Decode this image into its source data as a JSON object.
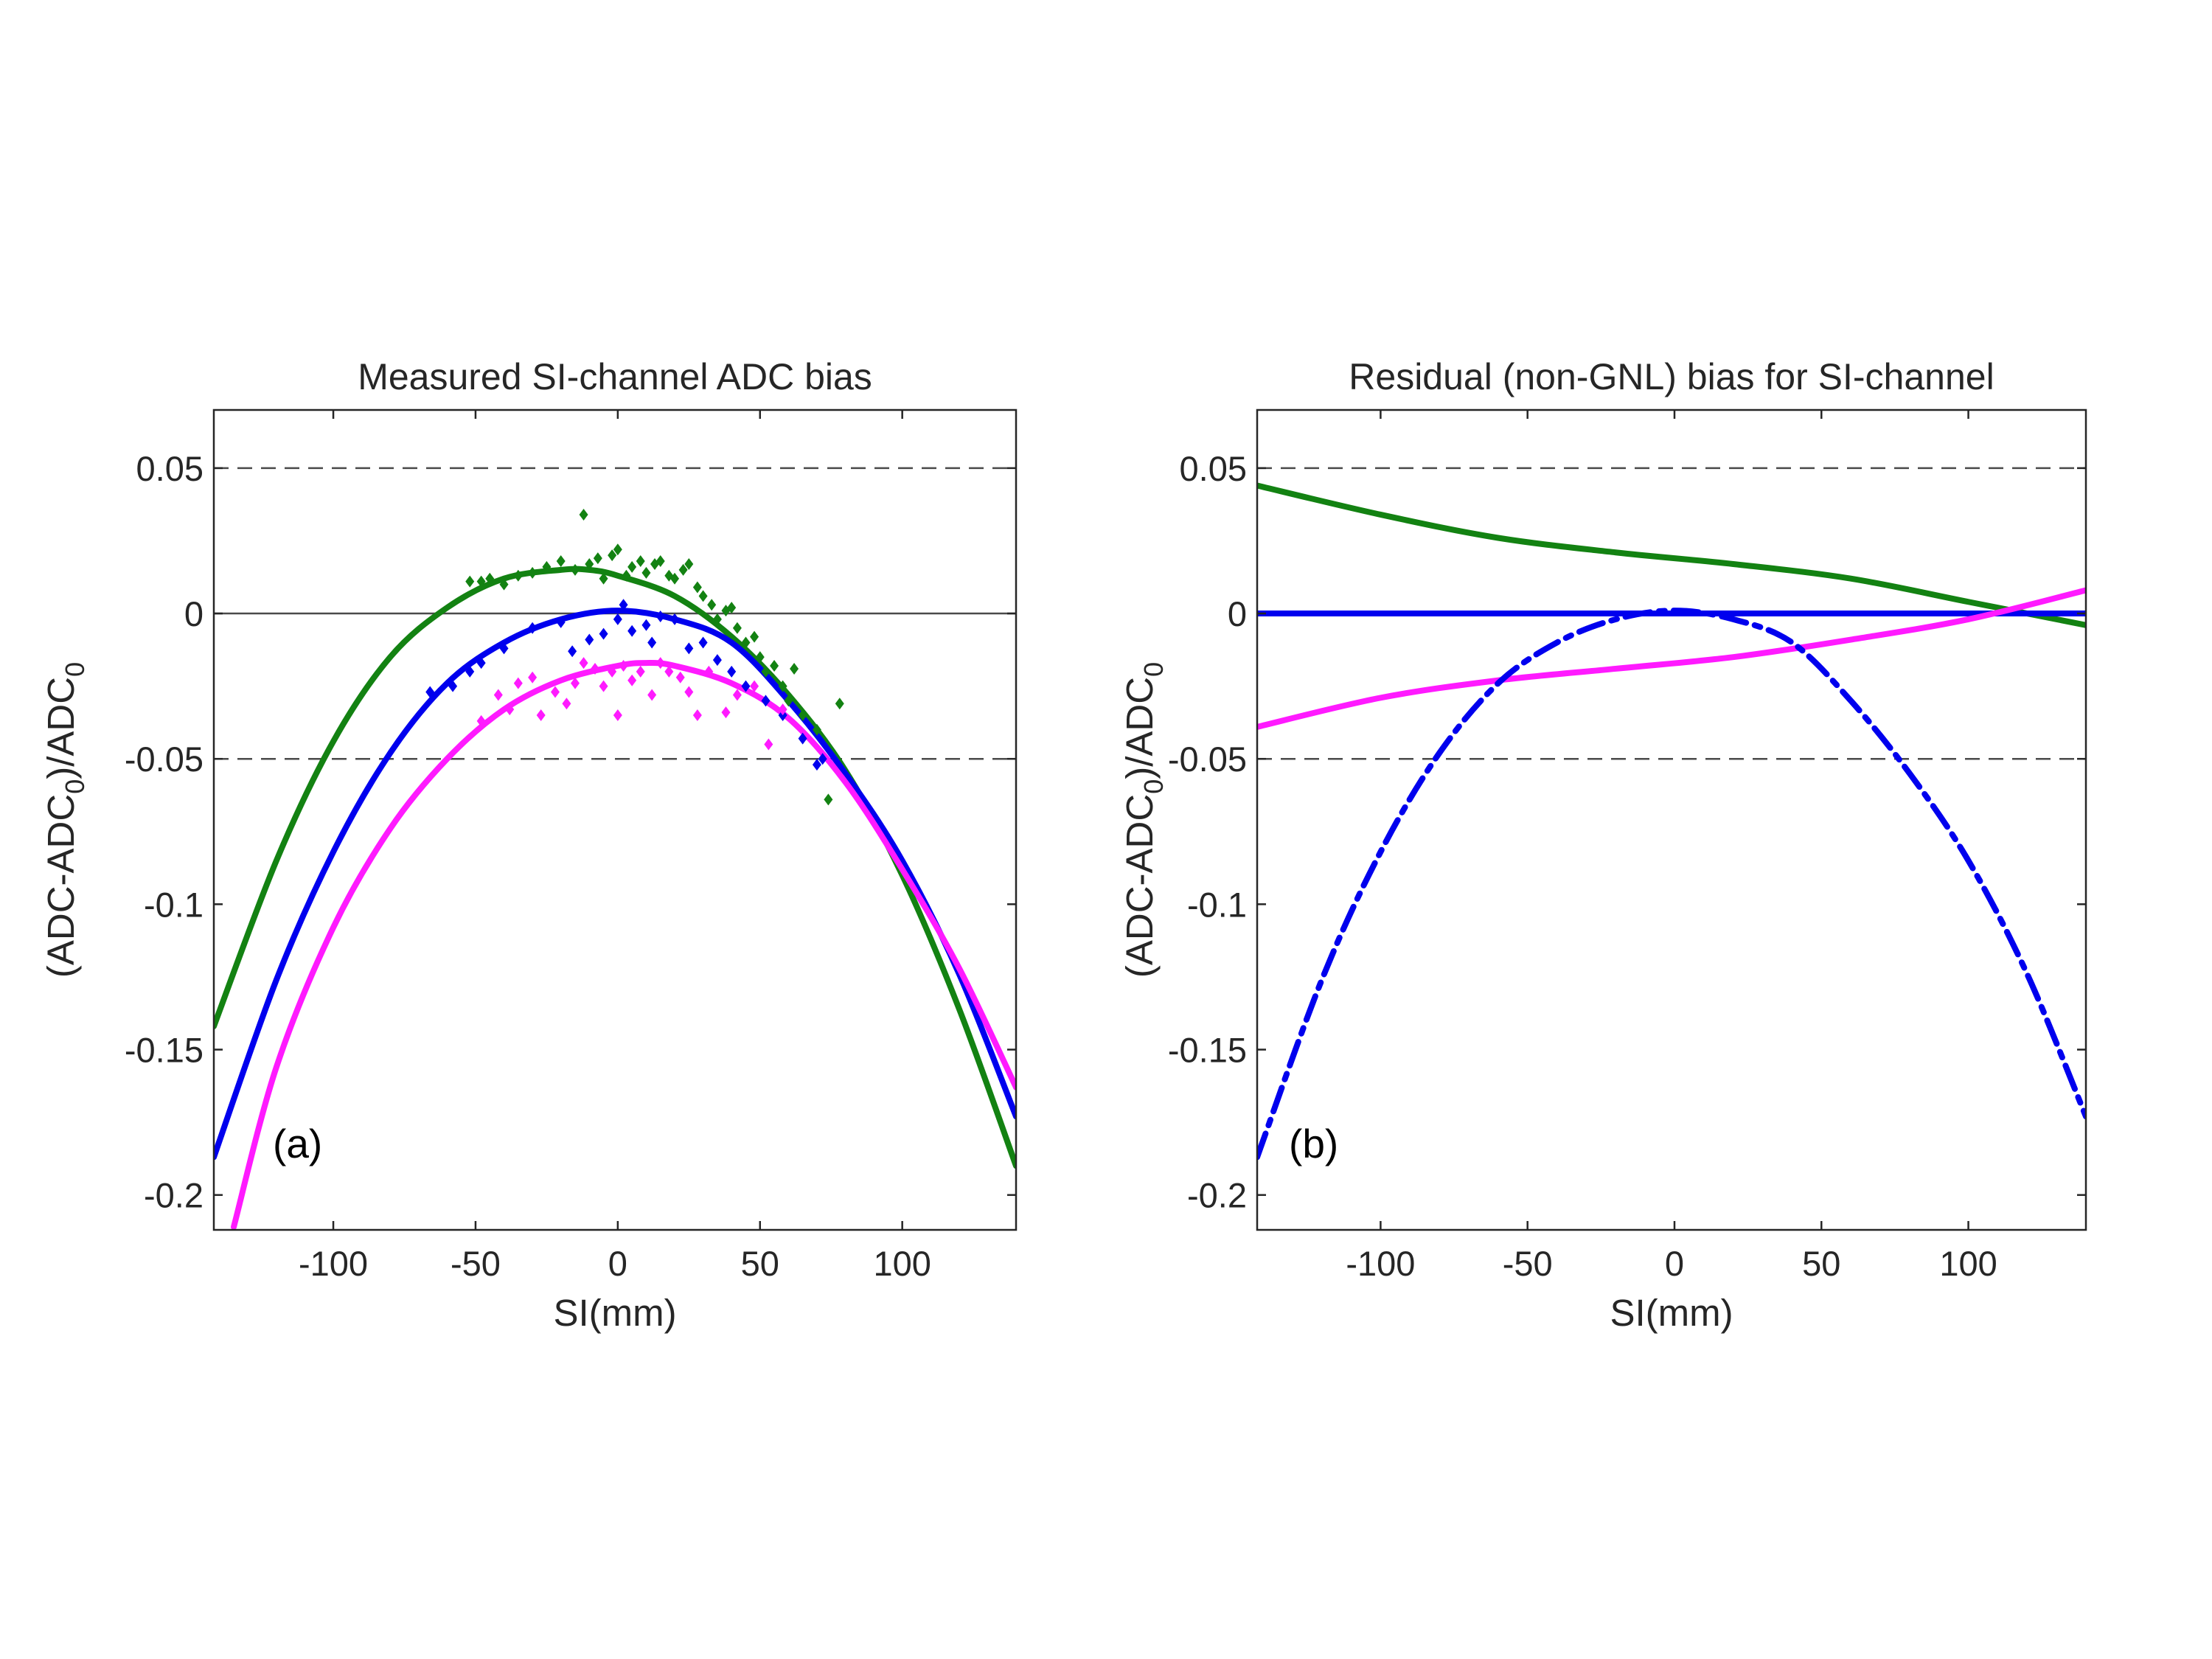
{
  "colors": {
    "green": "#138212",
    "blue": "#0000EE",
    "magenta": "#FF1AFF",
    "axis": "#262626",
    "reference": "#4a4a4a"
  },
  "chart_data": [
    {
      "type": "line",
      "panel_tag": "(a)",
      "title": "Measured SI-channel ADC bias",
      "xlabel": "SI(mm)",
      "ylabel_main": "(ADC-ADC",
      "ylabel_sub": "0",
      "ylabel_mid": ")/ADC",
      "ylabel_sub2": "0",
      "xlim": [
        -142,
        140
      ],
      "ylim": [
        -0.212,
        0.07
      ],
      "xticks": [
        -100,
        -50,
        0,
        50,
        100
      ],
      "xtick_labels": [
        "-100",
        "-50",
        "0",
        "50",
        "100"
      ],
      "yticks": [
        0.05,
        0,
        -0.05,
        -0.1,
        -0.15,
        -0.2
      ],
      "ytick_labels": [
        "0.05",
        "0",
        "-0.05",
        "-0.1",
        "-0.15",
        "-0.2"
      ],
      "reference_lines": [
        {
          "y": 0.05,
          "style": "dashed"
        },
        {
          "y": 0,
          "style": "solid"
        },
        {
          "y": -0.05,
          "style": "dashed"
        }
      ],
      "series": [
        {
          "name": "green fit",
          "color": "#138212",
          "style": "solid",
          "x": [
            -142,
            -120,
            -100,
            -80,
            -60,
            -40,
            -20,
            -10,
            0,
            20,
            40,
            60,
            80,
            100,
            120,
            140
          ],
          "y": [
            -0.142,
            -0.085,
            -0.044,
            -0.015,
            0.002,
            0.012,
            0.015,
            0.015,
            0.013,
            0.006,
            -0.008,
            -0.028,
            -0.054,
            -0.09,
            -0.136,
            -0.19
          ]
        },
        {
          "name": "blue fit",
          "color": "#0000EE",
          "style": "solid",
          "x": [
            -142,
            -120,
            -100,
            -80,
            -60,
            -40,
            -20,
            0,
            20,
            40,
            60,
            80,
            100,
            120,
            140
          ],
          "y": [
            -0.187,
            -0.126,
            -0.082,
            -0.048,
            -0.024,
            -0.01,
            -0.002,
            0.001,
            -0.002,
            -0.01,
            -0.03,
            -0.055,
            -0.085,
            -0.124,
            -0.173
          ]
        },
        {
          "name": "magenta fit",
          "color": "#FF1AFF",
          "style": "solid",
          "x": [
            -135,
            -120,
            -100,
            -80,
            -60,
            -40,
            -20,
            0,
            10,
            20,
            40,
            60,
            80,
            100,
            120,
            140
          ],
          "y": [
            -0.211,
            -0.156,
            -0.108,
            -0.074,
            -0.05,
            -0.033,
            -0.023,
            -0.018,
            -0.017,
            -0.018,
            -0.024,
            -0.036,
            -0.058,
            -0.088,
            -0.122,
            -0.163
          ]
        },
        {
          "name": "green measurements",
          "color": "#138212",
          "style": "markers",
          "x": [
            -52,
            -48,
            -45,
            -40,
            -35,
            -30,
            -25,
            -20,
            -15,
            -12,
            -10,
            -7,
            -5,
            -2,
            0,
            3,
            5,
            8,
            10,
            13,
            15,
            18,
            20,
            23,
            25,
            28,
            30,
            33,
            35,
            38,
            40,
            42,
            45,
            48,
            50,
            52,
            55,
            58,
            60,
            62,
            65,
            70,
            74,
            78
          ],
          "y": [
            0.011,
            0.011,
            0.012,
            0.01,
            0.013,
            0.014,
            0.016,
            0.018,
            0.015,
            0.034,
            0.017,
            0.019,
            0.012,
            0.02,
            0.022,
            0.013,
            0.016,
            0.018,
            0.014,
            0.017,
            0.018,
            0.013,
            0.012,
            0.015,
            0.017,
            0.009,
            0.006,
            0.003,
            -0.002,
            0.001,
            0.002,
            -0.005,
            -0.01,
            -0.008,
            -0.015,
            -0.02,
            -0.018,
            -0.025,
            -0.03,
            -0.019,
            -0.035,
            -0.04,
            -0.064,
            -0.031
          ]
        },
        {
          "name": "blue measurements",
          "color": "#0000EE",
          "style": "markers",
          "x": [
            -66,
            -58,
            -52,
            -48,
            -40,
            -30,
            -20,
            -16,
            -10,
            -5,
            0,
            2,
            5,
            10,
            12,
            15,
            20,
            25,
            30,
            35,
            40,
            45,
            52,
            58,
            65,
            70,
            72
          ],
          "y": [
            -0.027,
            -0.025,
            -0.02,
            -0.017,
            -0.012,
            -0.005,
            -0.003,
            -0.013,
            -0.009,
            -0.007,
            -0.002,
            0.003,
            -0.006,
            -0.004,
            -0.01,
            -0.001,
            -0.002,
            -0.012,
            -0.01,
            -0.016,
            -0.02,
            -0.025,
            -0.03,
            -0.035,
            -0.043,
            -0.052,
            -0.05
          ]
        },
        {
          "name": "magenta measurements",
          "color": "#FF1AFF",
          "style": "markers",
          "x": [
            -48,
            -42,
            -38,
            -35,
            -30,
            -27,
            -22,
            -18,
            -15,
            -12,
            -8,
            -5,
            -2,
            0,
            2,
            5,
            8,
            12,
            15,
            18,
            22,
            25,
            28,
            32,
            38,
            42,
            48,
            53,
            58
          ],
          "y": [
            -0.037,
            -0.028,
            -0.033,
            -0.024,
            -0.022,
            -0.035,
            -0.027,
            -0.031,
            -0.024,
            -0.017,
            -0.019,
            -0.025,
            -0.02,
            -0.035,
            -0.018,
            -0.023,
            -0.02,
            -0.028,
            -0.017,
            -0.02,
            -0.022,
            -0.027,
            -0.035,
            -0.02,
            -0.034,
            -0.028,
            -0.025,
            -0.045,
            -0.033
          ]
        }
      ]
    },
    {
      "type": "line",
      "panel_tag": "(b)",
      "title": "Residual (non-GNL) bias for SI-channel",
      "xlabel": "SI(mm)",
      "ylabel_main": "(ADC-ADC",
      "ylabel_sub": "0",
      "ylabel_mid": ")/ADC",
      "ylabel_sub2": "0",
      "xlim": [
        -142,
        140
      ],
      "ylim": [
        -0.212,
        0.07
      ],
      "xticks": [
        -100,
        -50,
        0,
        50,
        100
      ],
      "xtick_labels": [
        "-100",
        "-50",
        "0",
        "50",
        "100"
      ],
      "yticks": [
        0.05,
        0,
        -0.05,
        -0.1,
        -0.15,
        -0.2
      ],
      "ytick_labels": [
        "0.05",
        "0",
        "-0.05",
        "-0.1",
        "-0.15",
        "-0.2"
      ],
      "reference_lines": [
        {
          "y": 0.05,
          "style": "dashed"
        },
        {
          "y": -0.05,
          "style": "dashed"
        }
      ],
      "series": [
        {
          "name": "green residual",
          "color": "#138212",
          "style": "solid",
          "x": [
            -142,
            -100,
            -60,
            -20,
            20,
            60,
            100,
            140
          ],
          "y": [
            0.044,
            0.034,
            0.026,
            0.021,
            0.017,
            0.012,
            0.004,
            -0.004
          ]
        },
        {
          "name": "blue residual",
          "color": "#0000EE",
          "style": "solid",
          "x": [
            -142,
            140
          ],
          "y": [
            0,
            0
          ]
        },
        {
          "name": "magenta residual",
          "color": "#FF1AFF",
          "style": "solid",
          "x": [
            -142,
            -100,
            -60,
            -20,
            20,
            60,
            100,
            140
          ],
          "y": [
            -0.039,
            -0.029,
            -0.023,
            -0.019,
            -0.015,
            -0.009,
            -0.002,
            0.008
          ]
        },
        {
          "name": "blue dash-dot reference",
          "color": "#0000EE",
          "style": "dashdot",
          "x": [
            -142,
            -120,
            -100,
            -80,
            -60,
            -40,
            -20,
            0,
            20,
            40,
            60,
            80,
            100,
            120,
            140
          ],
          "y": [
            -0.187,
            -0.126,
            -0.082,
            -0.048,
            -0.024,
            -0.01,
            -0.002,
            0.001,
            -0.002,
            -0.01,
            -0.03,
            -0.055,
            -0.085,
            -0.124,
            -0.173
          ]
        }
      ]
    }
  ]
}
